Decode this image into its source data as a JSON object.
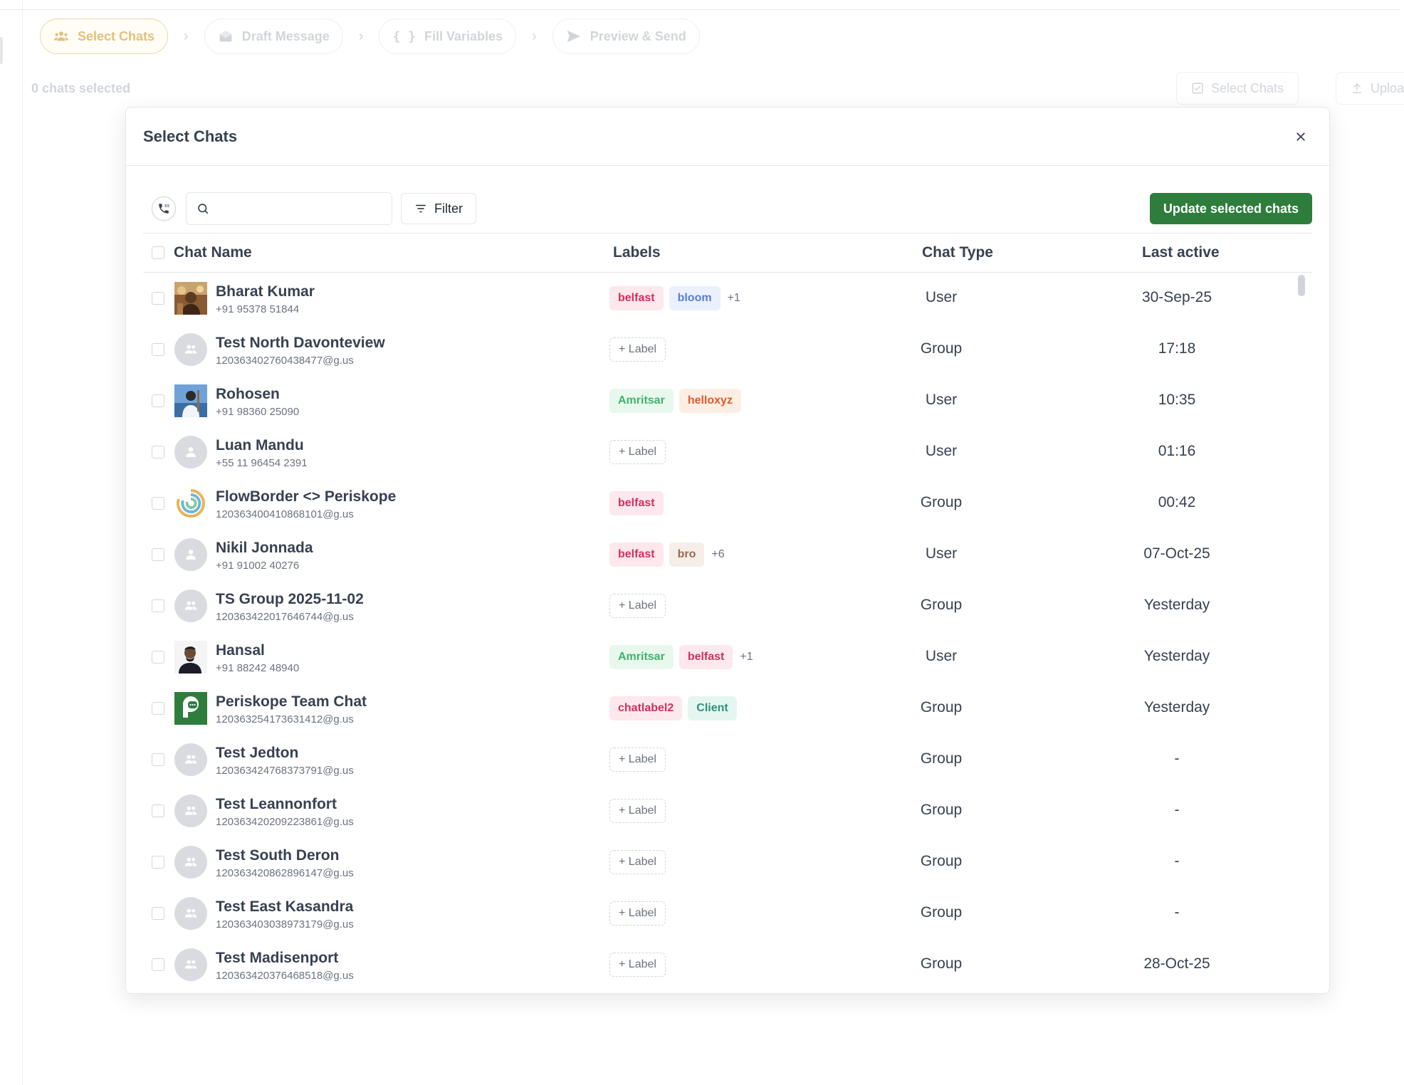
{
  "steps": [
    {
      "label": "Select Chats",
      "icon": "users-icon",
      "active": true
    },
    {
      "label": "Draft Message",
      "icon": "envelope-icon",
      "active": false
    },
    {
      "label": "Fill Variables",
      "icon": "braces-icon",
      "active": false
    },
    {
      "label": "Preview & Send",
      "icon": "send-icon",
      "active": false
    }
  ],
  "page": {
    "selection_count": "0 chats selected",
    "select_chats_button": "Select Chats",
    "upload_button": "Uploa"
  },
  "modal": {
    "title": "Select Chats",
    "search": {
      "value": "",
      "placeholder": ""
    },
    "filter_label": "Filter",
    "update_button": "Update selected chats",
    "columns": {
      "chat_name": "Chat Name",
      "labels": "Labels",
      "chat_type": "Chat Type",
      "last_active": "Last active"
    }
  },
  "rows": [
    {
      "name": "Bharat Kumar",
      "sub": "+91 95378 51844",
      "avatar": "photo-bharat",
      "labels": [
        {
          "text": "belfast",
          "color": "pink"
        },
        {
          "text": "bloom",
          "color": "blue"
        }
      ],
      "more": "+1",
      "type": "User",
      "last_active": "30-Sep-25"
    },
    {
      "name": "Test North Davonteview",
      "sub": "120363402760438477@g.us",
      "avatar": "group",
      "labels": [],
      "add_label": "+ Label",
      "type": "Group",
      "last_active": "17:18"
    },
    {
      "name": "Rohosen",
      "sub": "+91 98360 25090",
      "avatar": "photo-rohosen",
      "labels": [
        {
          "text": "Amritsar",
          "color": "green"
        },
        {
          "text": "helloxyz",
          "color": "orange"
        }
      ],
      "type": "User",
      "last_active": "10:35"
    },
    {
      "name": "Luan Mandu",
      "sub": "+55 11 96454 2391",
      "avatar": "user",
      "labels": [],
      "add_label": "+ Label",
      "type": "User",
      "last_active": "01:16"
    },
    {
      "name": "FlowBorder <> Periskope",
      "sub": "120363400410868101@g.us",
      "avatar": "photo-flowborder",
      "labels": [
        {
          "text": "belfast",
          "color": "pink"
        }
      ],
      "type": "Group",
      "last_active": "00:42"
    },
    {
      "name": "Nikil Jonnada",
      "sub": "+91 91002 40276",
      "avatar": "user",
      "labels": [
        {
          "text": "belfast",
          "color": "pink"
        },
        {
          "text": "bro",
          "color": "brown"
        }
      ],
      "more": "+6",
      "type": "User",
      "last_active": "07-Oct-25"
    },
    {
      "name": "TS Group 2025-11-02",
      "sub": "120363422017646744@g.us",
      "avatar": "group",
      "labels": [],
      "add_label": "+ Label",
      "type": "Group",
      "last_active": "Yesterday"
    },
    {
      "name": "Hansal",
      "sub": "+91 88242 48940",
      "avatar": "photo-hansal",
      "labels": [
        {
          "text": "Amritsar",
          "color": "green"
        },
        {
          "text": "belfast",
          "color": "pink"
        }
      ],
      "more": "+1",
      "type": "User",
      "last_active": "Yesterday"
    },
    {
      "name": "Periskope Team Chat",
      "sub": "120363254173631412@g.us",
      "avatar": "photo-periskope",
      "labels": [
        {
          "text": "chatlabel2",
          "color": "pink"
        },
        {
          "text": "Client",
          "color": "teal"
        }
      ],
      "type": "Group",
      "last_active": "Yesterday"
    },
    {
      "name": "Test Jedton",
      "sub": "120363424768373791@g.us",
      "avatar": "group",
      "labels": [],
      "add_label": "+ Label",
      "type": "Group",
      "last_active": "-"
    },
    {
      "name": "Test Leannonfort",
      "sub": "120363420209223861@g.us",
      "avatar": "group",
      "labels": [],
      "add_label": "+ Label",
      "type": "Group",
      "last_active": "-"
    },
    {
      "name": "Test South Deron",
      "sub": "120363420862896147@g.us",
      "avatar": "group",
      "labels": [],
      "add_label": "+ Label",
      "type": "Group",
      "last_active": "-"
    },
    {
      "name": "Test East Kasandra",
      "sub": "120363403038973179@g.us",
      "avatar": "group",
      "labels": [],
      "add_label": "+ Label",
      "type": "Group",
      "last_active": "-"
    },
    {
      "name": "Test Madisenport",
      "sub": "120363420376468518@g.us",
      "avatar": "group",
      "labels": [],
      "add_label": "+ Label",
      "type": "Group",
      "last_active": "28-Oct-25"
    }
  ],
  "colors": {
    "primary_green": "#2e7d3c",
    "active_step": "#e2c17a",
    "tag_pink": "#d0315c"
  }
}
